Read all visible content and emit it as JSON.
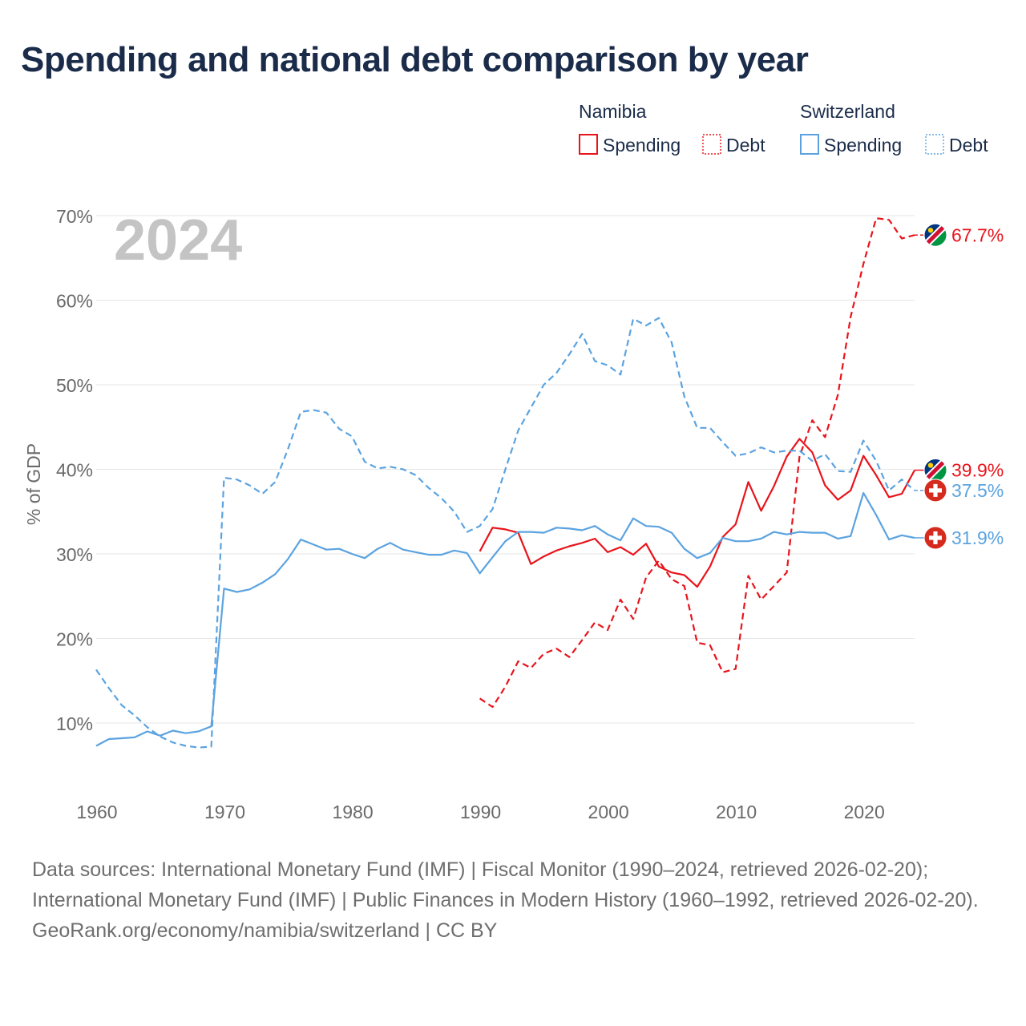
{
  "title": "Spending and national debt comparison by year",
  "year_label": "2024",
  "legend": {
    "groups": [
      {
        "country": "Namibia",
        "color": "#e8141b",
        "items": [
          {
            "label": "Spending",
            "style": "solid"
          },
          {
            "label": "Debt",
            "style": "dotted"
          }
        ]
      },
      {
        "country": "Switzerland",
        "color": "#5ba3e0",
        "items": [
          {
            "label": "Spending",
            "style": "solid"
          },
          {
            "label": "Debt",
            "style": "dotted"
          }
        ]
      }
    ]
  },
  "footer": {
    "sources": "Data sources: International Monetary Fund (IMF) | Fiscal Monitor (1990–2024, retrieved 2026-02-20); International Monetary Fund (IMF) | Public Finances in Modern History (1960–1992, retrieved 2026-02-20).",
    "attribution": "GeoRank.org/economy/namibia/switzerland | CC BY"
  },
  "chart_data": {
    "type": "line",
    "title": "Spending and national debt comparison by year",
    "xlabel": "",
    "ylabel": "% of GDP",
    "xlim": [
      1960,
      2024
    ],
    "ylim": [
      3,
      72
    ],
    "x_ticks": [
      1960,
      1970,
      1980,
      1990,
      2000,
      2010,
      2020
    ],
    "y_ticks": [
      10,
      20,
      30,
      40,
      50,
      60,
      70
    ],
    "y_tick_labels": [
      "10%",
      "20%",
      "30%",
      "40%",
      "50%",
      "60%",
      "70%"
    ],
    "grid": true,
    "series": [
      {
        "name": "Namibia Spending",
        "country": "Namibia",
        "flag": "namibia",
        "color": "#e8141b",
        "dash": "solid",
        "end_label": "39.9%",
        "end_value": 39.9,
        "x": [
          1990,
          1991,
          1992,
          1993,
          1994,
          1995,
          1996,
          1997,
          1998,
          1999,
          2000,
          2001,
          2002,
          2003,
          2004,
          2005,
          2006,
          2007,
          2008,
          2009,
          2010,
          2011,
          2012,
          2013,
          2014,
          2015,
          2016,
          2017,
          2018,
          2019,
          2020,
          2021,
          2022,
          2023,
          2024
        ],
        "y": [
          30.3,
          33.1,
          32.9,
          32.5,
          28.8,
          29.7,
          30.4,
          30.9,
          31.3,
          31.8,
          30.2,
          30.8,
          29.9,
          31.2,
          28.5,
          27.8,
          27.5,
          26.1,
          28.5,
          32.0,
          33.5,
          38.5,
          35.1,
          38.0,
          41.5,
          43.6,
          42.0,
          38.1,
          36.4,
          37.5,
          41.6,
          39.3,
          36.7,
          37.1,
          39.9
        ]
      },
      {
        "name": "Namibia Debt",
        "country": "Namibia",
        "flag": "namibia",
        "color": "#e8141b",
        "dash": "dashed",
        "end_label": "67.7%",
        "end_value": 67.7,
        "x": [
          1990,
          1991,
          1992,
          1993,
          1994,
          1995,
          1996,
          1997,
          1998,
          1999,
          2000,
          2001,
          2002,
          2003,
          2004,
          2005,
          2006,
          2007,
          2008,
          2009,
          2010,
          2011,
          2012,
          2013,
          2014,
          2015,
          2016,
          2017,
          2018,
          2019,
          2020,
          2021,
          2022,
          2023,
          2024
        ],
        "y": [
          12.9,
          11.9,
          14.3,
          17.3,
          16.5,
          18.2,
          18.8,
          17.8,
          19.8,
          21.9,
          21.0,
          24.6,
          22.3,
          27.2,
          29.2,
          27.0,
          26.2,
          19.5,
          19.2,
          16.0,
          16.4,
          27.4,
          24.6,
          26.2,
          27.8,
          41.5,
          45.8,
          43.8,
          48.8,
          58.0,
          64.3,
          69.7,
          69.5,
          67.3,
          67.7
        ]
      },
      {
        "name": "Switzerland Spending",
        "country": "Switzerland",
        "flag": "switzerland",
        "color": "#5ba3e0",
        "dash": "solid",
        "end_label": "31.9%",
        "end_value": 31.9,
        "x": [
          1960,
          1961,
          1962,
          1963,
          1964,
          1965,
          1966,
          1967,
          1968,
          1969,
          1970,
          1971,
          1972,
          1973,
          1974,
          1975,
          1976,
          1977,
          1978,
          1979,
          1980,
          1981,
          1982,
          1983,
          1984,
          1985,
          1986,
          1987,
          1988,
          1989,
          1990,
          1991,
          1992,
          1993,
          1994,
          1995,
          1996,
          1997,
          1998,
          1999,
          2000,
          2001,
          2002,
          2003,
          2004,
          2005,
          2006,
          2007,
          2008,
          2009,
          2010,
          2011,
          2012,
          2013,
          2014,
          2015,
          2016,
          2017,
          2018,
          2019,
          2020,
          2021,
          2022,
          2023,
          2024
        ],
        "y": [
          7.3,
          8.1,
          8.2,
          8.3,
          9.0,
          8.5,
          9.1,
          8.8,
          9.0,
          9.6,
          25.9,
          25.5,
          25.8,
          26.6,
          27.6,
          29.4,
          31.7,
          31.1,
          30.5,
          30.6,
          30.0,
          29.5,
          30.6,
          31.3,
          30.5,
          30.2,
          29.9,
          29.9,
          30.4,
          30.1,
          27.7,
          29.6,
          31.5,
          32.6,
          32.6,
          32.5,
          33.1,
          33.0,
          32.8,
          33.3,
          32.3,
          31.6,
          34.2,
          33.3,
          33.2,
          32.5,
          30.6,
          29.5,
          30.1,
          31.9,
          31.5,
          31.5,
          31.8,
          32.6,
          32.3,
          32.6,
          32.5,
          32.5,
          31.8,
          32.1,
          37.2,
          34.6,
          31.7,
          32.2,
          31.9
        ]
      },
      {
        "name": "Switzerland Debt",
        "country": "Switzerland",
        "flag": "switzerland",
        "color": "#5ba3e0",
        "dash": "dashed",
        "end_label": "37.5%",
        "end_value": 37.5,
        "x": [
          1960,
          1961,
          1962,
          1963,
          1964,
          1965,
          1966,
          1967,
          1968,
          1969,
          1970,
          1971,
          1972,
          1973,
          1974,
          1975,
          1976,
          1977,
          1978,
          1979,
          1980,
          1981,
          1982,
          1983,
          1984,
          1985,
          1986,
          1987,
          1988,
          1989,
          1990,
          1991,
          1992,
          1993,
          1994,
          1995,
          1996,
          1997,
          1998,
          1999,
          2000,
          2001,
          2002,
          2003,
          2004,
          2005,
          2006,
          2007,
          2008,
          2009,
          2010,
          2011,
          2012,
          2013,
          2014,
          2015,
          2016,
          2017,
          2018,
          2019,
          2020,
          2021,
          2022,
          2023,
          2024
        ],
        "y": [
          16.3,
          14.1,
          12.1,
          10.9,
          9.5,
          8.4,
          7.7,
          7.3,
          7.1,
          7.2,
          39.0,
          38.8,
          38.1,
          37.1,
          38.5,
          42.4,
          46.8,
          47.0,
          46.7,
          44.8,
          43.9,
          40.9,
          40.1,
          40.3,
          40.0,
          39.3,
          37.8,
          36.6,
          35.0,
          32.6,
          33.3,
          35.3,
          40.0,
          44.6,
          47.3,
          50.0,
          51.4,
          53.6,
          56.0,
          52.8,
          52.3,
          51.2,
          57.8,
          57.0,
          57.9,
          55.0,
          48.6,
          44.9,
          44.9,
          43.2,
          41.6,
          41.9,
          42.6,
          42.0,
          42.2,
          42.2,
          41.0,
          41.8,
          39.8,
          39.7,
          43.4,
          41.0,
          37.5,
          38.8,
          37.5
        ]
      }
    ]
  }
}
